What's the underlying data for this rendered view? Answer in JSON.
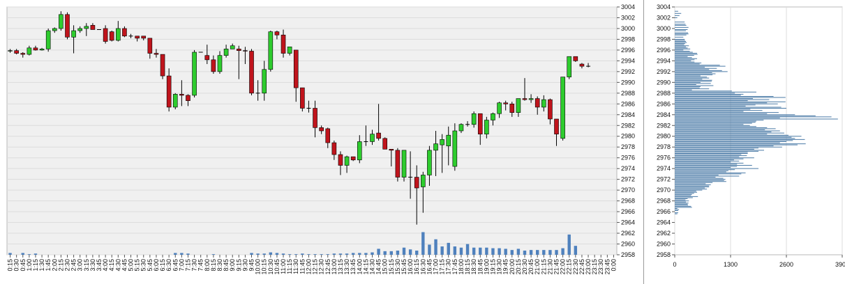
{
  "colors": {
    "plot_bg": "#f0f0f0",
    "grid": "#dcdcdc",
    "up": "#2ecc2e",
    "down": "#c0141c",
    "wick": "#000000",
    "volume": "#4f81bd",
    "profile": "#4a7aa6"
  },
  "chart_data": [
    {
      "type": "candlestick",
      "y_ticks": [
        "3004",
        "3002",
        "3000",
        "2998",
        "2996",
        "2994",
        "2992",
        "2990",
        "2988",
        "2986",
        "2984",
        "2982",
        "2980",
        "2978",
        "2976",
        "2974",
        "2972",
        "2970",
        "2968",
        "2966",
        "2964",
        "2962",
        "2960",
        "2958"
      ],
      "x_ticks": [
        "0:15",
        "0:30",
        "0:45",
        "1:00",
        "1:15",
        "1:30",
        "1:45",
        "2:00",
        "2:15",
        "2:30",
        "2:45",
        "3:00",
        "3:15",
        "3:30",
        "3:45",
        "4:00",
        "4:15",
        "4:30",
        "4:45",
        "5:00",
        "5:15",
        "5:30",
        "5:45",
        "6:00",
        "6:15",
        "6:30",
        "6:45",
        "7:00",
        "7:15",
        "7:30",
        "7:45",
        "8:00",
        "8:15",
        "8:30",
        "8:45",
        "9:00",
        "9:15",
        "9:30",
        "9:45",
        "10:00",
        "10:15",
        "10:30",
        "10:45",
        "11:00",
        "11:15",
        "11:30",
        "11:45",
        "12:00",
        "12:15",
        "12:30",
        "12:45",
        "13:00",
        "13:15",
        "13:30",
        "13:45",
        "14:00",
        "14:15",
        "14:30",
        "14:45",
        "15:00",
        "15:15",
        "15:30",
        "15:45",
        "16:00",
        "16:15",
        "16:30",
        "16:45",
        "17:00",
        "17:15",
        "17:30",
        "17:45",
        "18:00",
        "18:15",
        "18:30",
        "18:45",
        "19:00",
        "19:15",
        "19:30",
        "19:45",
        "20:00",
        "20:15",
        "20:30",
        "20:45",
        "21:00",
        "21:15",
        "21:30",
        "21:45",
        "22:00",
        "22:15",
        "22:30",
        "22:45",
        "23:00",
        "23:15",
        "23:30",
        "23:45",
        "0:00"
      ],
      "ylim": [
        2958,
        3004
      ],
      "candles": [
        [
          2995.8,
          2996.2,
          2995.5,
          2995.9
        ],
        [
          2995.9,
          2996.2,
          2995.2,
          2995.4
        ],
        [
          2995.4,
          2995.6,
          2994.6,
          2995.2
        ],
        [
          2995.2,
          2996.8,
          2995.0,
          2996.4
        ],
        [
          2996.4,
          2996.8,
          2995.9,
          2996.0
        ],
        [
          2996.0,
          2996.4,
          2995.9,
          2996.2
        ],
        [
          2996.2,
          3000.0,
          2995.7,
          2999.6
        ],
        [
          2999.6,
          3000.2,
          2999.2,
          3000.0
        ],
        [
          3000.0,
          3003.2,
          2999.6,
          3002.6
        ],
        [
          3002.6,
          3003.0,
          2998.0,
          2998.4
        ],
        [
          2998.4,
          3000.6,
          2995.4,
          2999.6
        ],
        [
          2999.6,
          3000.4,
          2999.2,
          3000.0
        ],
        [
          3000.0,
          3001.0,
          2998.6,
          3000.4
        ],
        [
          3000.6,
          3001.0,
          2999.8,
          2999.8
        ],
        [
          2999.8,
          2999.8,
          2999.8,
          2999.8
        ],
        [
          3000.0,
          3000.6,
          2997.2,
          2997.6
        ],
        [
          2999.4,
          2999.6,
          2997.6,
          2997.8
        ],
        [
          2997.8,
          3001.4,
          2997.6,
          3000.0
        ],
        [
          3000.0,
          3000.4,
          2998.4,
          2998.6
        ],
        [
          2998.6,
          2999.0,
          2998.2,
          2998.6
        ],
        [
          2998.6,
          2998.6,
          2997.6,
          2998.2
        ],
        [
          2998.6,
          2998.6,
          2997.8,
          2998.2
        ],
        [
          2998.2,
          2998.2,
          2994.4,
          2995.4
        ],
        [
          2995.4,
          2996.2,
          2994.6,
          2995.2
        ],
        [
          2995.2,
          2995.2,
          2990.6,
          2991.2
        ],
        [
          2991.2,
          2992.6,
          2984.6,
          2985.4
        ],
        [
          2985.4,
          2988.0,
          2985.0,
          2987.8
        ],
        [
          2987.8,
          2990.4,
          2985.6,
          2987.6
        ],
        [
          2987.6,
          2987.8,
          2985.6,
          2986.6
        ],
        [
          2987.6,
          2996.0,
          2987.2,
          2995.6
        ],
        [
          2995.6,
          2995.6,
          2995.6,
          2995.6
        ],
        [
          2995.0,
          2997.0,
          2993.4,
          2994.2
        ],
        [
          2994.2,
          2995.0,
          2991.6,
          2992.0
        ],
        [
          2992.0,
          2995.8,
          2991.6,
          2995.0
        ],
        [
          2995.0,
          2997.0,
          2994.6,
          2996.2
        ],
        [
          2996.2,
          2997.2,
          2996.2,
          2996.8
        ],
        [
          2996.2,
          2996.8,
          2990.6,
          2995.9
        ],
        [
          2995.9,
          2996.6,
          2993.4,
          2995.8
        ],
        [
          2995.8,
          2996.2,
          2987.6,
          2988.0
        ],
        [
          2988.0,
          2990.4,
          2986.6,
          2988.0
        ],
        [
          2988.0,
          2994.0,
          2986.6,
          2992.4
        ],
        [
          2992.4,
          2999.6,
          2992.0,
          2999.4
        ],
        [
          2999.4,
          2999.6,
          2998.0,
          2998.8
        ],
        [
          2998.8,
          2999.8,
          2994.6,
          2995.4
        ],
        [
          2995.4,
          2996.6,
          2995.0,
          2996.6
        ],
        [
          2996.0,
          2996.0,
          2986.4,
          2989.0
        ],
        [
          2989.0,
          2989.0,
          2984.6,
          2985.2
        ],
        [
          2985.2,
          2986.6,
          2984.4,
          2985.2
        ],
        [
          2985.2,
          2986.6,
          2979.8,
          2981.6
        ],
        [
          2981.6,
          2982.0,
          2980.4,
          2981.0
        ],
        [
          2981.4,
          2981.6,
          2977.8,
          2978.8
        ],
        [
          2978.8,
          2979.2,
          2975.6,
          2976.6
        ],
        [
          2976.6,
          2977.2,
          2972.8,
          2974.6
        ],
        [
          2974.6,
          2976.4,
          2973.2,
          2976.2
        ],
        [
          2976.2,
          2976.2,
          2975.4,
          2975.6
        ],
        [
          2975.6,
          2980.2,
          2975.0,
          2979.0
        ],
        [
          2979.0,
          2982.0,
          2978.2,
          2979.0
        ],
        [
          2979.0,
          2981.2,
          2978.4,
          2980.4
        ],
        [
          2980.6,
          2986.0,
          2979.2,
          2979.6
        ],
        [
          2979.6,
          2979.8,
          2977.6,
          2977.6
        ],
        [
          2977.6,
          2977.6,
          2974.4,
          2977.4
        ],
        [
          2977.4,
          2977.8,
          2971.6,
          2972.4
        ],
        [
          2972.4,
          2977.4,
          2971.6,
          2977.4
        ],
        [
          2972.4,
          2977.2,
          2968.4,
          2972.4
        ],
        [
          2972.4,
          2974.6,
          2963.6,
          2970.4
        ],
        [
          2970.6,
          2973.4,
          2965.8,
          2972.8
        ],
        [
          2972.8,
          2978.2,
          2970.8,
          2977.4
        ],
        [
          2977.4,
          2981.0,
          2972.6,
          2978.6
        ],
        [
          2978.4,
          2980.4,
          2973.2,
          2979.4
        ],
        [
          2978.2,
          2981.8,
          2974.6,
          2980.2
        ],
        [
          2974.4,
          2982.4,
          2973.6,
          2981.0
        ],
        [
          2981.0,
          2982.4,
          2980.6,
          2982.2
        ],
        [
          2982.2,
          2982.8,
          2981.8,
          2982.2
        ],
        [
          2982.2,
          2984.6,
          2981.6,
          2984.2
        ],
        [
          2984.2,
          2984.2,
          2978.4,
          2980.4
        ],
        [
          2980.4,
          2983.6,
          2979.6,
          2983.0
        ],
        [
          2983.0,
          2984.4,
          2982.0,
          2984.2
        ],
        [
          2984.2,
          2986.4,
          2983.4,
          2986.2
        ],
        [
          2986.2,
          2986.6,
          2984.8,
          2986.0
        ],
        [
          2986.0,
          2986.4,
          2983.6,
          2984.4
        ],
        [
          2984.4,
          2987.0,
          2983.6,
          2987.0
        ],
        [
          2987.0,
          2990.8,
          2986.6,
          2986.8
        ],
        [
          2986.8,
          2987.8,
          2986.2,
          2987.0
        ],
        [
          2987.0,
          2987.4,
          2984.0,
          2985.4
        ],
        [
          2985.4,
          2987.6,
          2984.6,
          2986.8
        ],
        [
          2986.8,
          2987.0,
          2982.2,
          2983.2
        ],
        [
          2983.2,
          2983.2,
          2978.2,
          2980.4
        ],
        [
          2979.6,
          2991.0,
          2979.2,
          2991.0
        ],
        [
          2991.0,
          2994.8,
          2990.6,
          2994.8
        ],
        [
          2994.8,
          2994.8,
          2993.8,
          2994.0
        ],
        [
          2993.4,
          2993.6,
          2992.6,
          2993.0
        ],
        [
          2993.0,
          2993.6,
          2992.8,
          2993.0
        ]
      ],
      "volume": [
        0.3,
        0,
        0.3,
        0.1,
        0.2,
        0,
        0,
        0,
        0,
        0,
        0,
        0,
        0,
        0,
        0,
        0,
        0,
        0,
        0,
        0,
        0,
        0,
        0,
        0,
        0,
        0,
        0.3,
        0.3,
        0.2,
        0,
        0,
        0,
        0.1,
        0,
        0,
        0,
        0,
        0,
        0.3,
        0.2,
        0.2,
        0.4,
        0.3,
        0.2,
        0.1,
        0.1,
        0.2,
        0.1,
        0.1,
        0.1,
        0.1,
        0.2,
        0.2,
        0.2,
        0.3,
        0.3,
        0.3,
        0.4,
        1.0,
        0.6,
        0.6,
        0.7,
        1.2,
        0.9,
        0.7,
        3.8,
        1.7,
        2.6,
        1.4,
        2.0,
        1.4,
        1.2,
        1.8,
        1.2,
        1.2,
        1.2,
        1.1,
        1.1,
        1.0,
        0.8,
        1.0,
        0.7,
        0.8,
        0.8,
        0.8,
        0.8,
        0.8,
        1.1,
        3.4,
        1.5
      ],
      "volume_max": 3.8
    },
    {
      "type": "bar",
      "orientation": "horizontal",
      "x_ticks": [
        "0",
        "1300",
        "2600",
        "3900"
      ],
      "xlim": [
        0,
        3900
      ],
      "y_ticks": [
        "3004",
        "3002",
        "3000",
        "2998",
        "2996",
        "2994",
        "2992",
        "2990",
        "2988",
        "2986",
        "2984",
        "2982",
        "2980",
        "2978",
        "2976",
        "2974",
        "2972",
        "2970",
        "2968",
        "2966",
        "2964",
        "2962",
        "2960",
        "2958"
      ],
      "ylim": [
        2958,
        3004
      ],
      "price_start": 3003.6,
      "price_step": 0.2,
      "values": [
        0,
        0,
        80,
        0,
        150,
        0,
        110,
        0,
        60,
        0,
        0,
        0,
        230,
        0,
        250,
        270,
        0,
        320,
        0,
        300,
        260,
        0,
        310,
        320,
        270,
        0,
        200,
        0,
        230,
        240,
        260,
        280,
        240,
        220,
        330,
        260,
        300,
        360,
        200,
        350,
        420,
        520,
        530,
        450,
        300,
        400,
        520,
        460,
        380,
        460,
        620,
        580,
        1050,
        1180,
        700,
        980,
        800,
        1100,
        1230,
        870,
        950,
        880,
        600,
        750,
        800,
        640,
        870,
        860,
        600,
        840,
        500,
        900,
        600,
        580,
        800,
        400,
        1330,
        1900,
        1400,
        1600,
        1540,
        2300,
        2580,
        1820,
        2200,
        1700,
        2580,
        2150,
        2400,
        1880,
        1650,
        2480,
        2600,
        1760,
        2040,
        1600,
        2420,
        2150,
        2800,
        3280,
        3650,
        2450,
        3800,
        2070,
        1900,
        1880,
        1800,
        1600,
        1750,
        1900,
        2150,
        2350,
        2100,
        2450,
        2250,
        2550,
        2150,
        2650,
        2950,
        2720,
        2800,
        3030,
        2750,
        2600,
        2450,
        3050,
        2860,
        2300,
        2500,
        1950,
        1850,
        2080,
        1950,
        1700,
        1700,
        1550,
        1680,
        1500,
        1850,
        1600,
        1380,
        1500,
        1300,
        1600,
        1450,
        1800,
        1450,
        1300,
        1950,
        1400,
        1250,
        1200,
        1650,
        1550,
        1020,
        1500,
        950,
        1130,
        1180,
        1150,
        1200,
        880,
        720,
        840,
        800,
        800,
        700,
        750,
        640,
        500,
        520,
        450,
        400,
        380,
        540,
        420,
        300,
        250,
        330,
        260,
        320,
        300,
        310,
        380,
        400,
        60,
        100,
        80,
        0,
        80,
        60,
        0,
        0,
        0,
        0,
        0,
        0
      ]
    }
  ]
}
